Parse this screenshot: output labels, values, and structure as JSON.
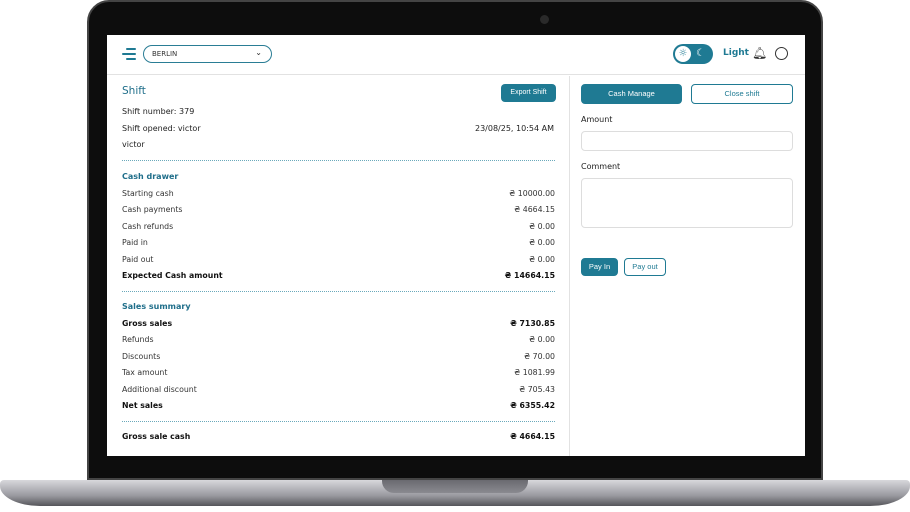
{
  "header": {
    "location": "BERLIN",
    "theme_label": "Light"
  },
  "shift": {
    "title": "Shift",
    "export_label": "Export Shift",
    "number": "Shift number: 379",
    "opened": "Shift opened: victor",
    "opened_at": "23/08/25, 10:54 AM",
    "user": "victor"
  },
  "cash_drawer": {
    "title": "Cash drawer",
    "rows": [
      {
        "label": "Starting cash",
        "value": "₴ 10000.00"
      },
      {
        "label": "Cash payments",
        "value": "₴ 4664.15"
      },
      {
        "label": "Cash refunds",
        "value": "₴ 0.00"
      },
      {
        "label": "Paid in",
        "value": "₴ 0.00"
      },
      {
        "label": "Paid out",
        "value": "₴ 0.00"
      },
      {
        "label": "Expected Cash amount",
        "value": "₴ 14664.15"
      }
    ]
  },
  "sales_summary": {
    "title": "Sales summary",
    "rows": [
      {
        "label": "Gross sales",
        "value": "₴ 7130.85"
      },
      {
        "label": "Refunds",
        "value": "₴ 0.00"
      },
      {
        "label": "Discounts",
        "value": "₴ 70.00"
      },
      {
        "label": "Tax amount",
        "value": "₴ 1081.99"
      },
      {
        "label": "Additional discount",
        "value": "₴ 705.43"
      },
      {
        "label": "Net sales",
        "value": "₴ 6355.42"
      }
    ]
  },
  "gross_sale_cash": {
    "label": "Gross sale cash",
    "value": "₴ 4664.15"
  },
  "cash_panel": {
    "cash_manage_label": "Cash Manage",
    "close_shift_label": "Close shift",
    "amount_label": "Amount",
    "amount_value": "",
    "comment_label": "Comment",
    "comment_value": "",
    "pay_in_label": "Pay In",
    "pay_out_label": "Pay out"
  },
  "colors": {
    "accent": "#1f7a93"
  }
}
